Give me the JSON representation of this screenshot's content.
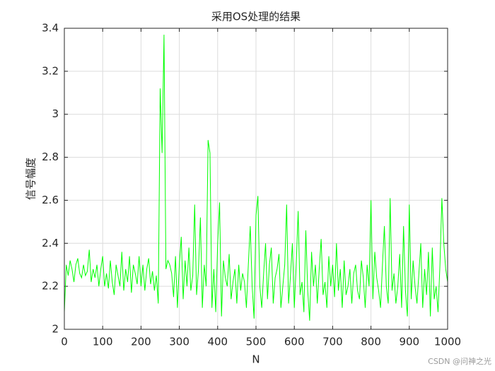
{
  "chart_data": {
    "type": "line",
    "title": "采用OS处理的结果",
    "x_label": "N",
    "y_label": "信号幅度",
    "watermark": "CSDN @问神之光",
    "color": "#00ff00",
    "grid": true,
    "xlim": [
      0,
      1000
    ],
    "xticks": [
      0,
      100,
      200,
      300,
      400,
      500,
      600,
      700,
      800,
      900,
      1000
    ],
    "ylim": [
      2,
      3.4
    ],
    "yticks": [
      2,
      2.2,
      2.4,
      2.6,
      2.8,
      3,
      3.2,
      3.4
    ],
    "x": [
      0,
      5,
      10,
      15,
      20,
      25,
      30,
      35,
      40,
      45,
      50,
      55,
      60,
      65,
      70,
      75,
      80,
      85,
      90,
      95,
      100,
      105,
      110,
      115,
      120,
      125,
      130,
      135,
      140,
      145,
      150,
      155,
      160,
      165,
      170,
      175,
      180,
      185,
      190,
      195,
      200,
      205,
      210,
      215,
      220,
      225,
      230,
      235,
      240,
      245,
      250,
      255,
      260,
      265,
      270,
      275,
      280,
      285,
      290,
      295,
      300,
      305,
      310,
      315,
      320,
      325,
      330,
      335,
      340,
      345,
      350,
      355,
      360,
      365,
      370,
      375,
      380,
      385,
      390,
      395,
      400,
      405,
      410,
      415,
      420,
      425,
      430,
      435,
      440,
      445,
      450,
      455,
      460,
      465,
      470,
      475,
      480,
      485,
      490,
      495,
      500,
      505,
      510,
      515,
      520,
      525,
      530,
      535,
      540,
      545,
      550,
      555,
      560,
      565,
      570,
      575,
      580,
      585,
      590,
      595,
      600,
      605,
      610,
      615,
      620,
      625,
      630,
      635,
      640,
      645,
      650,
      655,
      660,
      665,
      670,
      675,
      680,
      685,
      690,
      695,
      700,
      705,
      710,
      715,
      720,
      725,
      730,
      735,
      740,
      745,
      750,
      755,
      760,
      765,
      770,
      775,
      780,
      785,
      790,
      795,
      800,
      805,
      810,
      815,
      820,
      825,
      830,
      835,
      840,
      845,
      850,
      855,
      860,
      865,
      870,
      875,
      880,
      885,
      890,
      895,
      900,
      905,
      910,
      915,
      920,
      925,
      930,
      935,
      940,
      945,
      950,
      955,
      960,
      965,
      970,
      975,
      980,
      985,
      990,
      995,
      1000
    ],
    "values": [
      2.08,
      2.3,
      2.25,
      2.32,
      2.28,
      2.22,
      2.3,
      2.33,
      2.26,
      2.24,
      2.3,
      2.25,
      2.27,
      2.37,
      2.22,
      2.28,
      2.24,
      2.3,
      2.2,
      2.28,
      2.34,
      2.2,
      2.26,
      2.19,
      2.32,
      2.22,
      2.16,
      2.3,
      2.25,
      2.2,
      2.36,
      2.18,
      2.28,
      2.22,
      2.34,
      2.17,
      2.3,
      2.26,
      2.21,
      2.34,
      2.2,
      2.3,
      2.18,
      2.28,
      2.33,
      2.21,
      2.27,
      2.18,
      2.25,
      2.12,
      3.12,
      2.82,
      3.37,
      2.28,
      2.32,
      2.3,
      2.26,
      2.15,
      2.34,
      2.1,
      2.3,
      2.43,
      2.14,
      2.32,
      2.2,
      2.38,
      2.18,
      2.25,
      2.58,
      2.16,
      2.28,
      2.52,
      2.1,
      2.3,
      2.2,
      2.88,
      2.82,
      2.1,
      2.28,
      2.08,
      2.4,
      2.59,
      2.06,
      2.32,
      2.24,
      2.2,
      2.35,
      2.14,
      2.22,
      2.28,
      2.12,
      2.3,
      2.18,
      2.26,
      2.22,
      2.1,
      2.3,
      2.48,
      2.2,
      2.05,
      2.53,
      2.62,
      2.2,
      2.1,
      2.26,
      2.4,
      2.14,
      2.3,
      2.38,
      2.12,
      2.24,
      2.28,
      2.35,
      2.1,
      2.2,
      2.3,
      2.58,
      2.12,
      2.25,
      2.4,
      2.1,
      2.3,
      2.55,
      2.16,
      2.22,
      2.08,
      2.46,
      2.18,
      2.04,
      2.36,
      2.2,
      2.3,
      2.12,
      2.28,
      2.42,
      2.16,
      2.22,
      2.1,
      2.34,
      2.2,
      2.3,
      2.15,
      2.4,
      2.18,
      2.28,
      2.1,
      2.32,
      2.16,
      2.2,
      2.28,
      2.12,
      2.26,
      2.3,
      2.18,
      2.14,
      2.32,
      2.24,
      2.1,
      2.3,
      2.2,
      2.6,
      2.14,
      2.36,
      2.24,
      2.18,
      2.1,
      2.3,
      2.48,
      2.2,
      2.12,
      2.61,
      2.18,
      2.26,
      2.12,
      2.2,
      2.35,
      2.1,
      2.48,
      2.18,
      2.06,
      2.58,
      2.14,
      2.32,
      2.2,
      2.12,
      2.26,
      2.4,
      2.1,
      2.28,
      2.16,
      2.36,
      2.06,
      2.38,
      2.14,
      2.2,
      2.08,
      2.3,
      2.61,
      2.4,
      2.28,
      2.22
    ]
  }
}
